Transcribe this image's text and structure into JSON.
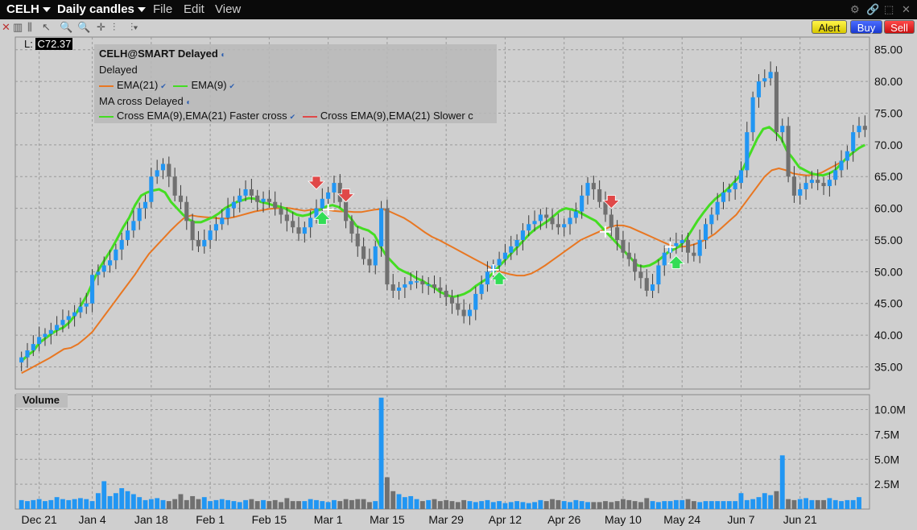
{
  "titlebar": {
    "symbol": "CELH",
    "chart_kind": "Daily candles",
    "menus": [
      "File",
      "Edit",
      "View"
    ]
  },
  "toolbar": {
    "alert": "Alert",
    "buy": "Buy",
    "sell": "Sell"
  },
  "last": {
    "prefix": "L:",
    "value": "C72.37"
  },
  "legend": {
    "title": "CELH@SMART Delayed",
    "status": "Delayed",
    "ema_slow": "EMA(21)",
    "ema_fast": "EMA(9)",
    "cross_title": "MA cross Delayed",
    "cross_fast": "Cross EMA(9),EMA(21) Faster cross",
    "cross_slow": "Cross EMA(9),EMA(21) Slower c"
  },
  "volume_panel": {
    "title": "Volume"
  },
  "colors": {
    "up_candle": "#2196f3",
    "down_candle": "#707070",
    "ema9": "#44dd22",
    "ema21": "#e87722",
    "volume_up": "#2196f3",
    "volume_down": "#707070",
    "sell_arrow": "#e04848",
    "buy_arrow": "#33dd55"
  },
  "chart_data": {
    "type": "candlestick",
    "price_axis": {
      "ticks": [
        "85.00",
        "80.00",
        "75.00",
        "70.00",
        "65.00",
        "60.00",
        "55.00",
        "50.00",
        "45.00",
        "40.00",
        "35.00"
      ],
      "ylim": [
        31.5,
        87
      ]
    },
    "volume_axis": {
      "ticks": [
        "10.0M",
        "7.5M",
        "5.0M",
        "2.5M"
      ],
      "ylim": [
        0,
        11.5
      ]
    },
    "date_labels": [
      "Dec 21",
      "Jan 4",
      "Jan 18",
      "Feb 1",
      "Feb 15",
      "Mar 1",
      "Mar 15",
      "Mar 29",
      "Apr 12",
      "Apr 26",
      "May 10",
      "May 24",
      "Jun 7",
      "Jun 21"
    ],
    "date_label_bar_index": [
      3,
      12,
      22,
      32,
      42,
      52,
      62,
      72,
      82,
      92,
      102,
      112,
      122,
      132
    ],
    "grid": true,
    "close": [
      36.5,
      37.6,
      38.6,
      39.7,
      40.2,
      40.8,
      41.6,
      42.4,
      43.0,
      43.6,
      44.5,
      45.0,
      49.5,
      50.0,
      51.0,
      51.8,
      53.5,
      55.0,
      56.5,
      58.0,
      60.0,
      61.0,
      65.0,
      66.0,
      67.0,
      65.0,
      62.0,
      61.0,
      58.0,
      55.0,
      54.0,
      55.0,
      56.5,
      57.5,
      58.5,
      60.0,
      61.0,
      62.0,
      63.0,
      62.0,
      61.0,
      61.5,
      61.0,
      60.0,
      59.0,
      58.0,
      57.0,
      56.0,
      57.0,
      58.5,
      60.0,
      61.5,
      62.5,
      64.0,
      61.0,
      58.0,
      56.0,
      54.0,
      52.0,
      51.0,
      54.0,
      60.0,
      48.0,
      47.0,
      47.5,
      48.0,
      48.5,
      48.5,
      48.0,
      48.0,
      47.5,
      47.0,
      46.0,
      45.0,
      44.0,
      43.0,
      44.0,
      46.5,
      48.0,
      50.0,
      51.0,
      52.0,
      53.0,
      54.0,
      55.0,
      56.5,
      57.5,
      58.0,
      59.0,
      58.5,
      57.5,
      57.0,
      57.5,
      58.5,
      59.5,
      62.0,
      64.0,
      63.0,
      61.0,
      59.0,
      57.0,
      55.0,
      53.0,
      52.0,
      50.0,
      49.0,
      47.0,
      48.0,
      51.0,
      53.0,
      54.0,
      54.5,
      55.0,
      53.0,
      52.5,
      55.0,
      57.5,
      59.0,
      61.0,
      62.5,
      63.0,
      64.0,
      66.0,
      72.0,
      77.5,
      80.0,
      80.5,
      81.5,
      72.0,
      73.0,
      65.0,
      62.0,
      63.0,
      64.0,
      64.5,
      64.0,
      63.5,
      64.5,
      66.0,
      67.5,
      69.0,
      72.0,
      73.0,
      72.37
    ],
    "ema9_approx": [
      35.9,
      36.8,
      37.5,
      38.8,
      39.5,
      40.2,
      40.8,
      41.2,
      42.0,
      43.2,
      44.8,
      46.4,
      48.5,
      50.5,
      52.0,
      53.5,
      55.2,
      57.0,
      58.5,
      60.5,
      62.0,
      62.5,
      62.8,
      63.0,
      62.5,
      61.0,
      60.0,
      59.0,
      58.2,
      57.8,
      57.8,
      58.2,
      58.6,
      59.2,
      60.0,
      60.5,
      61.0,
      61.3,
      61.6,
      61.5,
      61.0,
      60.8,
      60.5,
      60.3,
      60.0,
      59.5,
      59.0,
      58.8,
      59.0,
      59.5,
      59.8,
      60.3,
      60.5,
      60.2,
      59.5,
      58.5,
      57.2,
      56.8,
      56.5,
      55.8,
      54.0,
      52.5,
      51.5,
      50.5,
      50.0,
      49.6,
      49.0,
      48.6,
      48.0,
      47.5,
      46.8,
      46.4,
      46.0,
      46.2,
      46.5,
      47.0,
      47.8,
      48.4,
      49.0,
      50.0,
      51.0,
      52.0,
      53.0,
      54.0,
      55.0,
      56.0,
      56.8,
      57.4,
      58.0,
      58.8,
      59.6,
      60.0,
      59.8,
      59.5,
      59.0,
      58.5,
      58.0,
      57.0,
      56.0,
      55.0,
      54.0,
      53.0,
      52.0,
      51.0,
      50.8,
      51.0,
      51.5,
      52.2,
      53.0,
      53.5,
      54.0,
      55.0,
      56.5,
      58.0,
      59.3,
      60.5,
      61.5,
      62.2,
      63.0,
      64.0,
      65.0,
      67.0,
      69.0,
      71.0,
      72.5,
      72.8,
      72.0,
      71.0,
      69.0,
      67.8,
      66.5,
      66.0,
      65.5,
      65.3,
      65.2,
      65.5,
      66.0,
      67.0,
      68.0,
      68.8,
      69.5,
      70.0
    ],
    "ema21_approx": [
      34.0,
      34.6,
      35.2,
      35.8,
      36.4,
      37.1,
      37.8,
      38.0,
      38.6,
      39.5,
      40.5,
      42.0,
      43.5,
      45.0,
      46.5,
      48.0,
      49.5,
      51.2,
      52.8,
      54.0,
      55.2,
      56.4,
      57.5,
      58.5,
      58.9,
      58.7,
      58.6,
      58.5,
      58.4,
      58.4,
      58.6,
      58.9,
      59.2,
      59.5,
      59.7,
      59.9,
      60.0,
      60.1,
      60.0,
      59.8,
      59.6,
      59.8,
      59.9,
      59.8,
      59.6,
      59.5,
      59.5,
      59.4,
      59.4,
      59.6,
      59.8,
      59.9,
      59.5,
      59.0,
      58.5,
      57.8,
      57.0,
      56.2,
      55.5,
      55.0,
      54.4,
      53.8,
      53.2,
      52.6,
      52.0,
      51.4,
      50.8,
      50.2,
      49.9,
      49.6,
      49.4,
      49.4,
      49.7,
      50.3,
      51.0,
      51.8,
      52.6,
      53.4,
      54.2,
      55.0,
      55.5,
      56.0,
      56.5,
      57.0,
      57.3,
      57.3,
      57.0,
      56.5,
      56.0,
      55.5,
      55.0,
      54.5,
      54.0,
      53.9,
      54.0,
      54.3,
      54.7,
      55.3,
      56.0,
      57.0,
      58.0,
      59.0,
      60.5,
      62.0,
      63.5,
      65.0,
      66.0,
      66.3,
      66.0,
      65.5,
      65.3,
      65.2,
      65.3,
      65.6,
      66.2,
      66.8,
      67.4
    ],
    "ema21_start_index": 0,
    "ema21_note_index_scale": 1.2,
    "signals": [
      {
        "kind": "sell",
        "bar": 50
      },
      {
        "kind": "buy",
        "bar": 51
      },
      {
        "kind": "sell",
        "bar": 55
      },
      {
        "kind": "buy",
        "bar": 81
      },
      {
        "kind": "sell",
        "bar": 100
      },
      {
        "kind": "buy",
        "bar": 111
      }
    ],
    "cross_points": [
      {
        "bar": 52,
        "price": 59.8
      },
      {
        "bar": 80,
        "price": 50.3
      },
      {
        "bar": 99,
        "price": 56.3
      },
      {
        "bar": 110,
        "price": 53.9
      }
    ],
    "volume_millions": [
      0.9,
      0.8,
      0.9,
      1.0,
      0.8,
      0.9,
      1.2,
      1.0,
      0.9,
      1.0,
      1.1,
      1.0,
      0.8,
      1.6,
      2.8,
      1.3,
      1.6,
      2.1,
      1.8,
      1.5,
      1.2,
      0.9,
      1.0,
      1.1,
      0.9,
      0.8,
      1.0,
      1.5,
      0.9,
      1.3,
      1.0,
      1.2,
      0.8,
      0.9,
      1.0,
      0.9,
      0.8,
      0.7,
      0.9,
      1.0,
      0.8,
      0.9,
      0.8,
      0.9,
      0.7,
      1.1,
      0.8,
      0.8,
      0.8,
      1.0,
      0.9,
      0.8,
      0.7,
      0.9,
      0.8,
      1.0,
      0.9,
      1.0,
      1.0,
      0.7,
      0.8,
      11.2,
      3.2,
      1.8,
      1.5,
      1.2,
      1.3,
      1.0,
      0.8,
      0.9,
      1.0,
      0.8,
      0.9,
      0.8,
      0.7,
      0.9,
      0.8,
      0.7,
      0.8,
      0.9,
      0.7,
      0.8,
      0.6,
      0.7,
      0.8,
      0.7,
      0.6,
      0.7,
      0.9,
      0.8,
      1.0,
      0.9,
      0.8,
      0.7,
      0.9,
      0.8,
      0.7,
      0.7,
      0.7,
      0.8,
      0.7,
      0.8,
      1.0,
      0.9,
      0.8,
      0.7,
      1.1,
      0.8,
      0.7,
      0.8,
      0.8,
      0.9,
      0.9,
      1.0,
      0.8,
      0.7,
      0.8,
      0.8,
      0.8,
      0.8,
      0.8,
      0.8,
      1.6,
      0.9,
      1.0,
      1.2,
      1.6,
      1.4,
      1.8,
      5.4,
      1.0,
      0.9,
      1.0,
      1.1,
      0.9,
      0.9,
      0.9,
      1.1,
      0.9,
      0.8,
      0.9,
      0.9,
      1.2
    ]
  }
}
